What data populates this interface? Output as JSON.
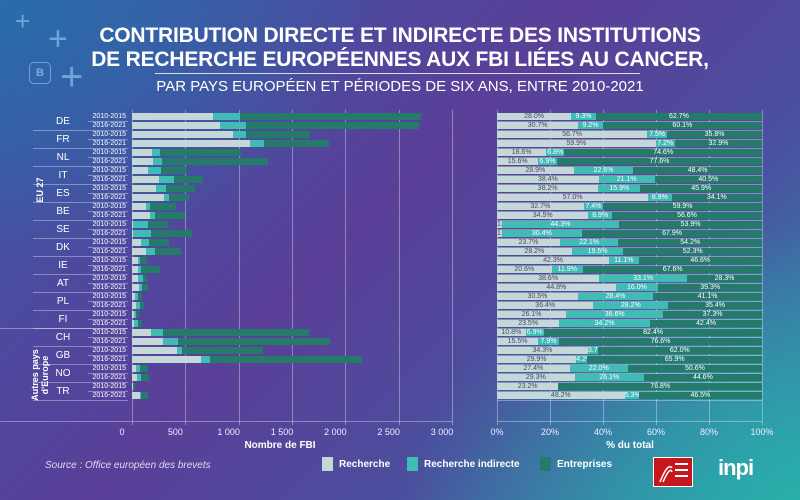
{
  "header": {
    "title_line1": "CONTRIBUTION DIRECTE ET INDIRECTE DES INSTITUTIONS",
    "title_line2": "DE RECHERCHE EUROPÉENNES AUX FBI LIÉES AU CANCER,",
    "subtitle": "PAR PAYS EUROPÉEN ET PÉRIODES DE SIX ANS, ENTRE 2010-2021",
    "logo_letter": "B"
  },
  "groups": [
    {
      "label": "EU 27",
      "countries": [
        "DE",
        "FR",
        "NL",
        "IT",
        "ES",
        "BE",
        "SE",
        "DK",
        "IE",
        "AT",
        "PL",
        "FI"
      ]
    },
    {
      "label": "Autres pays d'Europe",
      "countries": [
        "CH",
        "GB",
        "NO",
        "TR"
      ]
    }
  ],
  "periods": [
    "2010-2015",
    "2016-2021"
  ],
  "colors": {
    "Recherche": "#c4d8d8",
    "Recherche indirecte": "#3fbdb4",
    "Entreprises": "#257a69"
  },
  "legend": [
    "Recherche",
    "Recherche indirecte",
    "Entreprises"
  ],
  "source": "Source :  Office européen des brevets",
  "logos": {
    "epo": "European Patent Office",
    "inpi": "inpi"
  },
  "chart_data": [
    {
      "type": "bar",
      "orientation": "horizontal",
      "stacked": true,
      "xlabel": "Nombre de FBI",
      "xlim": [
        0,
        3000
      ],
      "xticks": [
        "0",
        "500",
        "1 000",
        "1 500",
        "2 000",
        "2 500",
        "3 000"
      ],
      "grid": true,
      "countries": [
        "DE",
        "FR",
        "NL",
        "IT",
        "ES",
        "BE",
        "SE",
        "DK",
        "IE",
        "AT",
        "PL",
        "FI",
        "CH",
        "GB",
        "NO",
        "TR"
      ],
      "totals": [
        [
          2705,
          2690
        ],
        [
          1665,
          1850
        ],
        [
          1025,
          1270
        ],
        [
          520,
          665
        ],
        [
          595,
          530
        ],
        [
          415,
          500
        ],
        [
          335,
          565
        ],
        [
          350,
          455
        ],
        [
          140,
          265
        ],
        [
          145,
          150
        ],
        [
          95,
          110
        ],
        [
          65,
          95
        ],
        [
          1655,
          1855
        ],
        [
          1230,
          2155
        ],
        [
          150,
          155
        ],
        [
          30,
          150
        ]
      ]
    },
    {
      "type": "bar",
      "orientation": "horizontal",
      "stacked": true,
      "xlabel": "% du total",
      "xlim": [
        0,
        100
      ],
      "xticks": [
        "0%",
        "20%",
        "40%",
        "60%",
        "80%",
        "100%"
      ],
      "grid": true,
      "series": [
        {
          "name": "Recherche",
          "values": [
            [
              28.0,
              30.7
            ],
            [
              56.7,
              59.9
            ],
            [
              18.6,
              15.6
            ],
            [
              28.9,
              38.4
            ],
            [
              38.2,
              57.0
            ],
            [
              32.7,
              34.5
            ],
            [
              1.8,
              1.7
            ],
            [
              23.7,
              28.2
            ],
            [
              42.3,
              20.6
            ],
            [
              38.6,
              44.8
            ],
            [
              30.5,
              36.4
            ],
            [
              26.1,
              23.5
            ],
            [
              10.8,
              15.5
            ],
            [
              34.3,
              29.9
            ],
            [
              27.4,
              29.3
            ],
            [
              23.2,
              48.2
            ]
          ]
        },
        {
          "name": "Recherche indirecte",
          "values": [
            [
              9.3,
              9.2
            ],
            [
              7.5,
              7.2
            ],
            [
              6.8,
              6.9
            ],
            [
              22.6,
              21.1
            ],
            [
              15.9,
              8.9
            ],
            [
              7.4,
              8.9
            ],
            [
              44.3,
              30.4
            ],
            [
              22.1,
              19.5
            ],
            [
              11.1,
              11.9
            ],
            [
              33.1,
              16.0
            ],
            [
              28.4,
              28.2
            ],
            [
              36.6,
              34.2
            ],
            [
              6.9,
              7.9
            ],
            [
              3.7,
              4.2
            ],
            [
              22.0,
              26.1
            ],
            [
              0,
              5.3
            ]
          ]
        },
        {
          "name": "Entreprises",
          "values": [
            [
              62.7,
              60.1
            ],
            [
              35.8,
              32.9
            ],
            [
              74.6,
              77.6
            ],
            [
              48.4,
              40.5
            ],
            [
              45.9,
              34.1
            ],
            [
              59.9,
              56.6
            ],
            [
              53.9,
              67.9
            ],
            [
              54.2,
              52.3
            ],
            [
              46.6,
              67.6
            ],
            [
              28.3,
              39.3
            ],
            [
              41.1,
              35.4
            ],
            [
              37.3,
              42.4
            ],
            [
              82.4,
              76.6
            ],
            [
              62.0,
              65.9
            ],
            [
              50.6,
              44.6
            ],
            [
              76.8,
              46.5
            ]
          ]
        }
      ]
    }
  ]
}
